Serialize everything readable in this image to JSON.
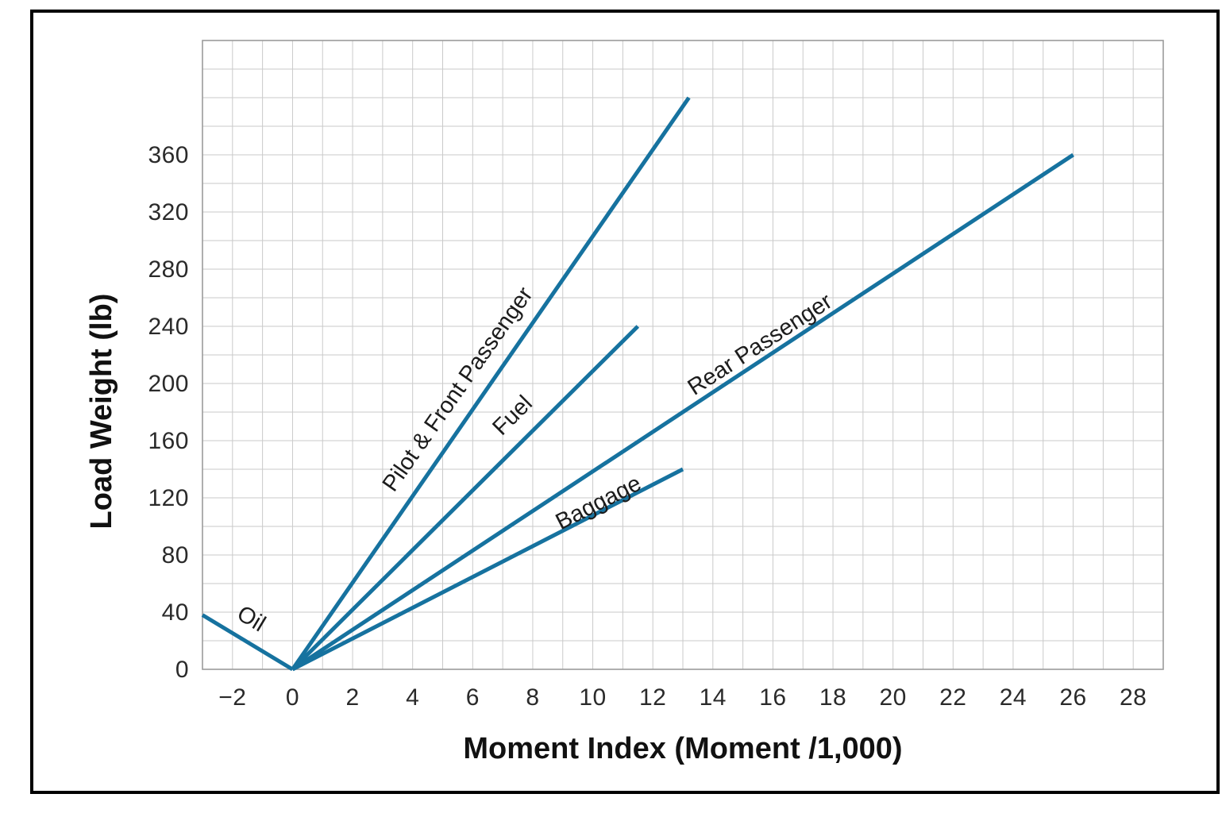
{
  "figure": {
    "background": "#ffffff",
    "border_color": "#000000"
  },
  "chart_data": {
    "type": "line",
    "title": "",
    "xlabel": "Moment Index (Moment /1,000)",
    "ylabel": "Load Weight (lb)",
    "xlim": [
      -3,
      29
    ],
    "ylim": [
      0,
      440
    ],
    "x_grid_step": 1,
    "y_grid_step": 20,
    "grid": true,
    "legend": "labels-along-lines",
    "grid_color": "#cacaca",
    "plot_border_color": "#9b9b9b",
    "line_color": "#16729f",
    "x_tick_values": [
      -2,
      0,
      2,
      4,
      6,
      8,
      10,
      12,
      14,
      16,
      18,
      20,
      22,
      24,
      26,
      28
    ],
    "x_tick_labels": [
      "−2",
      "0",
      "2",
      "4",
      "6",
      "8",
      "10",
      "12",
      "14",
      "16",
      "18",
      "20",
      "22",
      "24",
      "26",
      "28"
    ],
    "y_tick_values": [
      0,
      40,
      80,
      120,
      160,
      200,
      240,
      280,
      320,
      360
    ],
    "y_tick_labels": [
      "0",
      "40",
      "80",
      "120",
      "160",
      "200",
      "240",
      "280",
      "320",
      "360"
    ],
    "series": [
      {
        "name": "Pilot & Front Passenger",
        "points": [
          [
            0,
            0
          ],
          [
            13.2,
            400
          ]
        ],
        "label": {
          "x": 5.7,
          "y": 193,
          "rot": -55
        }
      },
      {
        "name": "Fuel",
        "points": [
          [
            0,
            0
          ],
          [
            11.5,
            240
          ]
        ],
        "label": {
          "x": 7.5,
          "y": 174,
          "rot": -45
        }
      },
      {
        "name": "Rear Passenger",
        "points": [
          [
            0,
            0
          ],
          [
            26,
            360
          ]
        ],
        "label": {
          "x": 15.7,
          "y": 223,
          "rot": -33
        }
      },
      {
        "name": "Baggage",
        "points": [
          [
            0,
            0
          ],
          [
            13,
            140
          ]
        ],
        "label": {
          "x": 10.3,
          "y": 112,
          "rot": -27
        }
      },
      {
        "name": "Oil",
        "points": [
          [
            0,
            0
          ],
          [
            -3,
            38
          ]
        ],
        "label": {
          "x": -1.5,
          "y": 31,
          "rot": 31
        }
      }
    ]
  }
}
